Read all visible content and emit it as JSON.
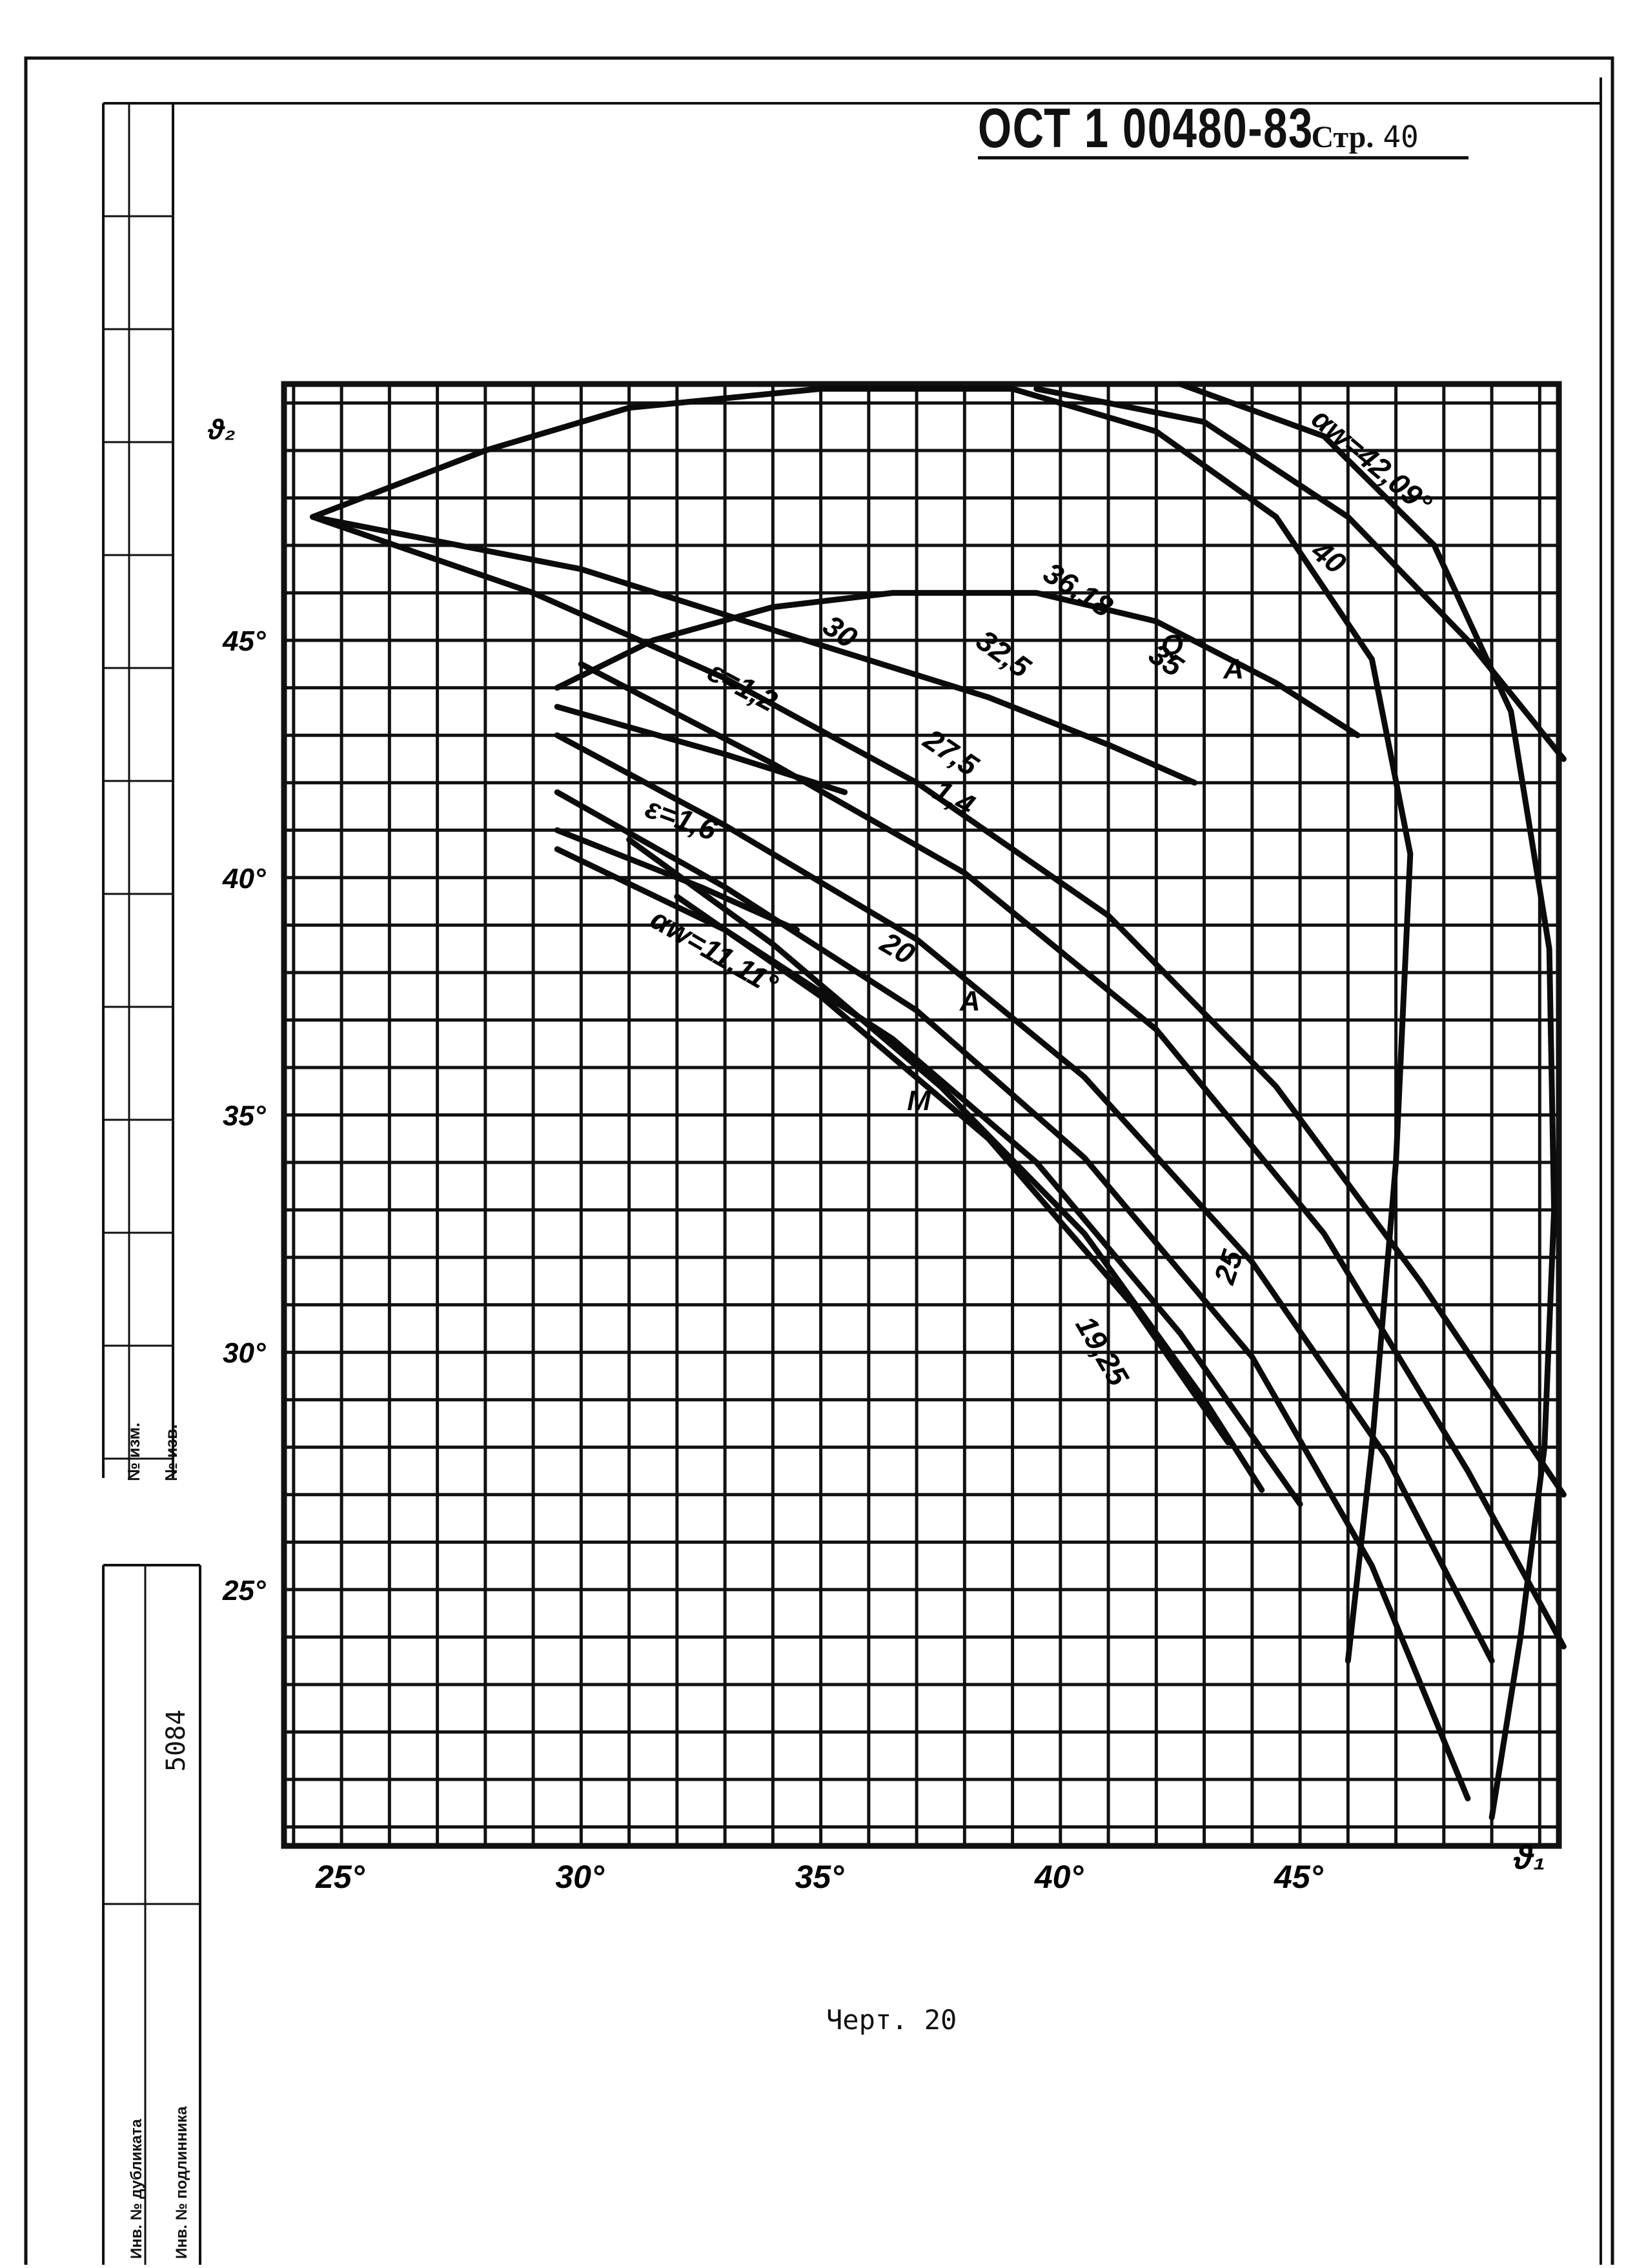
{
  "header": {
    "doc_code": "ОСТ 1 00480-83",
    "page_label": "Стр.",
    "page_number": "40"
  },
  "caption": "Черт. 20",
  "side_stamp": {
    "label_izm": "№ изм.",
    "label_izv": "№ изв.",
    "number": "5084",
    "label_dubl": "Инв. № дубликата",
    "label_podl": "Инв. № подлинника"
  },
  "chart_data": {
    "type": "line",
    "x_ticks": [
      "25°",
      "30°",
      "35°",
      "40°",
      "45°"
    ],
    "x_axis_label": "ϑ₁",
    "y_ticks": [
      "25°",
      "30°",
      "35°",
      "40°",
      "45°"
    ],
    "y_axis_label": "ϑ₂",
    "grid": true,
    "curve_labels": [
      "αw=42,09°",
      "40",
      "36,18",
      "35",
      "32,5",
      "30",
      "27,5",
      "25",
      "20",
      "19,25",
      "αw=11,11°",
      "ε=1,2",
      "1,4",
      "ε=1,6"
    ],
    "point_labels": [
      "Q",
      "A",
      "A",
      "M"
    ],
    "xlim": [
      23.8,
      50.4
    ],
    "ylim": [
      19.6,
      50.4
    ],
    "series": [
      {
        "name": "αw=42,09°",
        "points": [
          [
            42.5,
            50.4
          ],
          [
            45.5,
            49.3
          ],
          [
            47.8,
            47.0
          ],
          [
            49.4,
            43.5
          ],
          [
            50.2,
            38.5
          ],
          [
            50.3,
            33
          ],
          [
            50.1,
            28
          ],
          [
            49.6,
            24
          ],
          [
            49.0,
            20.2
          ]
        ]
      },
      {
        "name": "40",
        "points": [
          [
            39.5,
            50.3
          ],
          [
            43,
            49.6
          ],
          [
            46,
            47.6
          ],
          [
            48.5,
            45
          ],
          [
            50.5,
            42.5
          ]
        ]
      },
      {
        "name": "36,18",
        "points": [
          [
            24.4,
            47.6
          ],
          [
            28,
            49
          ],
          [
            31,
            49.9
          ],
          [
            35,
            50.3
          ],
          [
            39,
            50.3
          ],
          [
            42,
            49.4
          ],
          [
            44.5,
            47.6
          ],
          [
            46.5,
            44.6
          ],
          [
            47.3,
            40.5
          ],
          [
            47.0,
            34
          ],
          [
            46.5,
            28
          ],
          [
            46.0,
            23.5
          ]
        ]
      },
      {
        "name": "35",
        "points": [
          [
            24.4,
            47.6
          ],
          [
            30,
            46.5
          ],
          [
            35,
            44.9
          ],
          [
            38.5,
            43.8
          ],
          [
            41,
            42.8
          ],
          [
            42.8,
            42
          ]
        ]
      },
      {
        "name": "32,5",
        "points": [
          [
            24.4,
            47.6
          ],
          [
            29,
            46
          ],
          [
            33,
            44.2
          ],
          [
            37,
            42
          ],
          [
            41,
            39.2
          ],
          [
            44.5,
            35.6
          ],
          [
            47.5,
            31.5
          ],
          [
            50.5,
            27
          ]
        ]
      },
      {
        "name": "30",
        "points": [
          [
            30,
            44.5
          ],
          [
            34,
            42.4
          ],
          [
            38,
            40.1
          ],
          [
            42,
            36.8
          ],
          [
            45.5,
            32.5
          ],
          [
            48.5,
            27.5
          ],
          [
            50.5,
            23.8
          ]
        ]
      },
      {
        "name": "27,5",
        "points": [
          [
            29.5,
            43
          ],
          [
            33,
            41.1
          ],
          [
            37,
            38.7
          ],
          [
            40.5,
            35.8
          ],
          [
            44,
            31.9
          ],
          [
            46.8,
            27.8
          ],
          [
            49,
            23.5
          ]
        ]
      },
      {
        "name": "25",
        "points": [
          [
            29.5,
            41.8
          ],
          [
            33,
            39.8
          ],
          [
            37,
            37.2
          ],
          [
            40.5,
            34.1
          ],
          [
            44,
            29.9
          ],
          [
            46.5,
            25.5
          ],
          [
            48.5,
            20.6
          ]
        ]
      },
      {
        "name": "20",
        "points": [
          [
            29.5,
            40.6
          ],
          [
            33,
            38.9
          ],
          [
            36.5,
            36.6
          ],
          [
            39.5,
            34
          ],
          [
            42.5,
            30.4
          ],
          [
            45,
            26.8
          ]
        ]
      },
      {
        "name": "19,25",
        "points": [
          [
            31,
            40.8
          ],
          [
            34,
            38.6
          ],
          [
            37.5,
            35.6
          ],
          [
            40.5,
            32.5
          ],
          [
            43,
            29
          ],
          [
            44.2,
            27.1
          ]
        ]
      },
      {
        "name": "αw=11,11°",
        "points": [
          [
            32,
            39.6
          ],
          [
            35,
            37.5
          ],
          [
            38.5,
            34.5
          ],
          [
            41.5,
            31
          ],
          [
            43.5,
            28.1
          ]
        ]
      },
      {
        "name": "ε=1,2",
        "points": [
          [
            29.5,
            43.6
          ],
          [
            33,
            42.6
          ],
          [
            35.5,
            41.8
          ]
        ]
      },
      {
        "name": "ε=1,6",
        "points": [
          [
            29.5,
            41
          ],
          [
            32.5,
            39.8
          ],
          [
            34.5,
            38.9
          ]
        ]
      },
      {
        "name": "",
        "points": [
          [
            29.5,
            44
          ],
          [
            31.5,
            45
          ],
          [
            34,
            45.7
          ],
          [
            36.5,
            46
          ],
          [
            39.5,
            46
          ],
          [
            42,
            45.4
          ],
          [
            44.5,
            44.1
          ],
          [
            46.2,
            43
          ]
        ]
      }
    ]
  }
}
